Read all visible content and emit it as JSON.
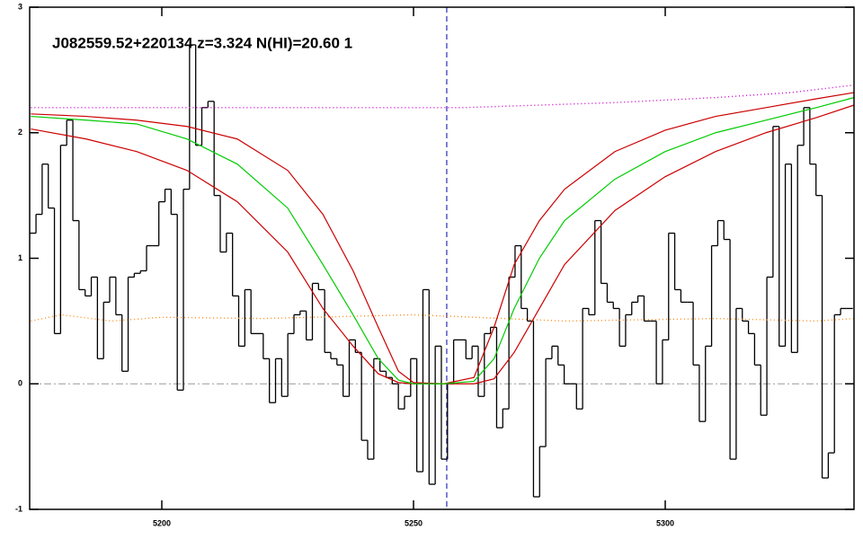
{
  "chart_data": {
    "type": "line",
    "title": "J082559.52+220134 z=3.324 N(HI)=20.60 1",
    "xlim": [
      5173.75,
      5337.5
    ],
    "ylim": [
      -1,
      3
    ],
    "xticks": [
      5200,
      5250,
      5300
    ],
    "yticks": [
      -1,
      0,
      1,
      2,
      3
    ],
    "markers": [
      5256.6
    ],
    "series": [
      {
        "style": "step",
        "color": "#000000",
        "x": [
          5174.4,
          5175.62,
          5176.84,
          5178.06,
          5179.28,
          5180.5,
          5181.72,
          5182.94,
          5184.16,
          5185.38,
          5186.6,
          5187.82,
          5189.04,
          5190.26,
          5191.48,
          5192.7,
          5193.92,
          5195.14,
          5196.36,
          5197.58,
          5198.8,
          5200.02,
          5201.24,
          5202.46,
          5203.68,
          5204.9,
          5206.12,
          5207.34,
          5208.56,
          5209.78,
          5211.0,
          5212.22,
          5213.44,
          5214.66,
          5215.88,
          5217.1,
          5218.32,
          5219.54,
          5220.76,
          5221.98,
          5223.2,
          5224.42,
          5225.64,
          5226.86,
          5228.08,
          5229.3,
          5230.52,
          5231.74,
          5232.96,
          5234.18,
          5235.4,
          5236.62,
          5237.84,
          5239.06,
          5240.28,
          5241.5,
          5242.72,
          5243.94,
          5245.16,
          5246.38,
          5247.6,
          5248.82,
          5250.04,
          5251.26,
          5252.48,
          5253.7,
          5254.92,
          5256.14,
          5257.36,
          5258.58,
          5259.8,
          5261.02,
          5262.24,
          5263.46,
          5264.68,
          5265.9,
          5267.12,
          5268.34,
          5269.56,
          5270.78,
          5272.0,
          5273.22,
          5274.44,
          5275.66,
          5276.88,
          5278.1,
          5279.32,
          5280.54,
          5281.76,
          5282.98,
          5284.2,
          5285.42,
          5286.64,
          5287.86,
          5289.08,
          5290.3,
          5291.52,
          5292.74,
          5293.96,
          5295.18,
          5296.4,
          5297.62,
          5298.84,
          5300.06,
          5301.28,
          5302.5,
          5303.72,
          5304.94,
          5306.16,
          5307.38,
          5308.6,
          5309.82,
          5311.04,
          5312.26,
          5313.48,
          5314.7,
          5315.92,
          5317.14,
          5318.36,
          5319.58,
          5320.8,
          5322.02,
          5323.24,
          5324.46,
          5325.68,
          5326.9,
          5328.12,
          5329.34,
          5330.56,
          5331.78,
          5333.0,
          5334.22,
          5335.44,
          5336.66
        ],
        "values": [
          1.2,
          1.35,
          1.75,
          1.4,
          0.4,
          1.9,
          2.1,
          1.3,
          0.75,
          0.7,
          0.85,
          0.2,
          0.65,
          0.85,
          0.55,
          0.1,
          0.85,
          0.88,
          0.9,
          1.1,
          1.1,
          1.45,
          1.55,
          1.35,
          -0.05,
          1.55,
          2.7,
          1.9,
          2.2,
          2.25,
          1.5,
          1.05,
          1.2,
          0.7,
          0.3,
          0.75,
          0.4,
          0.4,
          0.2,
          -0.15,
          0.2,
          -0.1,
          0.4,
          0.55,
          0.58,
          0.35,
          0.8,
          0.75,
          0.25,
          0.2,
          0.15,
          -0.1,
          0.35,
          0.25,
          -0.45,
          -0.6,
          0.2,
          0.1,
          0.05,
          0.0,
          -0.2,
          -0.1,
          0.2,
          -0.7,
          0.75,
          -0.8,
          0.3,
          -0.6,
          0.0,
          0.35,
          0.35,
          0.2,
          0.3,
          -0.1,
          0.4,
          0.45,
          -0.35,
          -0.2,
          0.85,
          1.1,
          0.6,
          0.5,
          -0.9,
          -0.5,
          0.2,
          0.3,
          0.15,
          0.0,
          0.0,
          -0.2,
          0.6,
          0.55,
          1.3,
          0.8,
          0.65,
          0.6,
          0.3,
          0.55,
          0.65,
          0.7,
          0.5,
          0.5,
          0.0,
          0.35,
          1.2,
          0.75,
          0.65,
          0.65,
          0.15,
          -0.3,
          0.3,
          1.1,
          1.3,
          1.15,
          -0.6,
          0.6,
          0.5,
          0.4,
          0.15,
          -0.25,
          0.85,
          2.05,
          0.3,
          1.75,
          0.25,
          1.9,
          2.2,
          1.75,
          1.5,
          -0.75,
          -0.55,
          0.55,
          0.6,
          0.6
        ]
      },
      {
        "style": "dotted",
        "color": "#ff8c1a",
        "x": [
          5174,
          5180,
          5190,
          5200,
          5220,
          5250,
          5280,
          5310,
          5330,
          5337.5
        ],
        "values": [
          0.5,
          0.55,
          0.5,
          0.53,
          0.52,
          0.55,
          0.5,
          0.52,
          0.5,
          0.52
        ]
      },
      {
        "style": "dotted",
        "color": "#cc00cc",
        "x": [
          5174,
          5260,
          5290,
          5310,
          5325,
          5337.5
        ],
        "values": [
          2.2,
          2.2,
          2.24,
          2.28,
          2.32,
          2.38
        ]
      },
      {
        "style": "solid",
        "color": "#cc0000",
        "x": [
          5174,
          5185,
          5195,
          5205,
          5215,
          5225,
          5232,
          5238,
          5243,
          5247,
          5250,
          5256,
          5262,
          5266,
          5270,
          5275,
          5280,
          5290,
          5300,
          5310,
          5320,
          5330,
          5337.5
        ],
        "values": [
          2.15,
          2.13,
          2.1,
          2.05,
          1.95,
          1.7,
          1.35,
          0.9,
          0.45,
          0.1,
          0.01,
          0,
          0.05,
          0.45,
          0.95,
          1.3,
          1.55,
          1.85,
          2.02,
          2.13,
          2.2,
          2.27,
          2.32
        ]
      },
      {
        "style": "solid",
        "color": "#cc0000",
        "x": [
          5174,
          5185,
          5195,
          5205,
          5215,
          5225,
          5232,
          5238,
          5243,
          5247,
          5250,
          5256,
          5262,
          5266,
          5270,
          5275,
          5280,
          5290,
          5300,
          5310,
          5320,
          5330,
          5337.5
        ],
        "values": [
          2.03,
          1.95,
          1.85,
          1.7,
          1.45,
          1.05,
          0.6,
          0.3,
          0.08,
          0.01,
          0,
          0,
          0,
          0.04,
          0.25,
          0.6,
          0.95,
          1.38,
          1.65,
          1.85,
          2.0,
          2.12,
          2.22
        ]
      },
      {
        "style": "solid",
        "color": "#00cc00",
        "x": [
          5174,
          5185,
          5195,
          5205,
          5215,
          5225,
          5232,
          5238,
          5243,
          5247,
          5250,
          5256,
          5262,
          5266,
          5270,
          5275,
          5280,
          5290,
          5300,
          5310,
          5320,
          5330,
          5337.5
        ],
        "values": [
          2.13,
          2.1,
          2.07,
          1.95,
          1.75,
          1.4,
          0.95,
          0.55,
          0.2,
          0.03,
          0,
          0,
          0.02,
          0.2,
          0.6,
          1.0,
          1.3,
          1.63,
          1.85,
          2.0,
          2.1,
          2.2,
          2.28
        ]
      }
    ]
  }
}
